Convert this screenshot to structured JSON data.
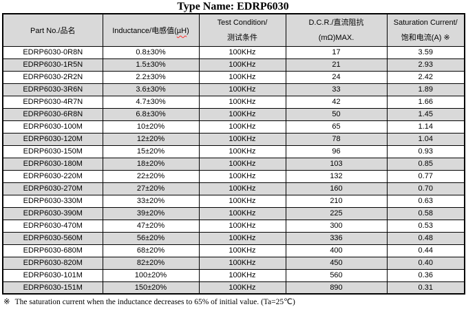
{
  "title": "Type Name: EDRP6030",
  "table": {
    "headers": {
      "part_no": "Part No./品名",
      "inductance": {
        "prefix": "Inductance/电感值(",
        "unit": "µH",
        "suffix": ")"
      },
      "test_condition": {
        "line1": "Test Condition/",
        "line2": "测试条件"
      },
      "dcr": {
        "line1": "D.C.R./直流阻抗",
        "line2": "(mΩ)MAX."
      },
      "saturation": {
        "line1": "Saturation Current/",
        "line2": "饱和电流(A)  ※"
      }
    },
    "rows": [
      [
        "EDRP6030-0R8N",
        "0.8±30%",
        "100KHz",
        "17",
        "3.59"
      ],
      [
        "EDRP6030-1R5N",
        "1.5±30%",
        "100KHz",
        "21",
        "2.93"
      ],
      [
        "EDRP6030-2R2N",
        "2.2±30%",
        "100KHz",
        "24",
        "2.42"
      ],
      [
        "EDRP6030-3R6N",
        "3.6±30%",
        "100KHz",
        "33",
        "1.89"
      ],
      [
        "EDRP6030-4R7N",
        "4.7±30%",
        "100KHz",
        "42",
        "1.66"
      ],
      [
        "EDRP6030-6R8N",
        "6.8±30%",
        "100KHz",
        "50",
        "1.45"
      ],
      [
        "EDRP6030-100M",
        "10±20%",
        "100KHz",
        "65",
        "1.14"
      ],
      [
        "EDRP6030-120M",
        "12±20%",
        "100KHz",
        "78",
        "1.04"
      ],
      [
        "EDRP6030-150M",
        "15±20%",
        "100KHz",
        "96",
        "0.93"
      ],
      [
        "EDRP6030-180M",
        "18±20%",
        "100KHz",
        "103",
        "0.85"
      ],
      [
        "EDRP6030-220M",
        "22±20%",
        "100KHz",
        "132",
        "0.77"
      ],
      [
        "EDRP6030-270M",
        "27±20%",
        "100KHz",
        "160",
        "0.70"
      ],
      [
        "EDRP6030-330M",
        "33±20%",
        "100KHz",
        "210",
        "0.63"
      ],
      [
        "EDRP6030-390M",
        "39±20%",
        "100KHz",
        "225",
        "0.58"
      ],
      [
        "EDRP6030-470M",
        "47±20%",
        "100KHz",
        "300",
        "0.53"
      ],
      [
        "EDRP6030-560M",
        "56±20%",
        "100KHz",
        "336",
        "0.48"
      ],
      [
        "EDRP6030-680M",
        "68±20%",
        "100KHz",
        "400",
        "0.44"
      ],
      [
        "EDRP6030-820M",
        "82±20%",
        "100KHz",
        "450",
        "0.40"
      ],
      [
        "EDRP6030-101M",
        "100±20%",
        "100KHz",
        "560",
        "0.36"
      ],
      [
        "EDRP6030-151M",
        "150±20%",
        "100KHz",
        "890",
        "0.31"
      ]
    ]
  },
  "note": {
    "marker": "※",
    "text": "The saturation current when the inductance decreases to 65% of initial value. (Ta=25℃)"
  },
  "colors": {
    "header_and_alt_row_bg": "#d9d9d9",
    "border": "#000000",
    "text": "#000000",
    "spellcheck_underline": "#ff2a2a"
  }
}
